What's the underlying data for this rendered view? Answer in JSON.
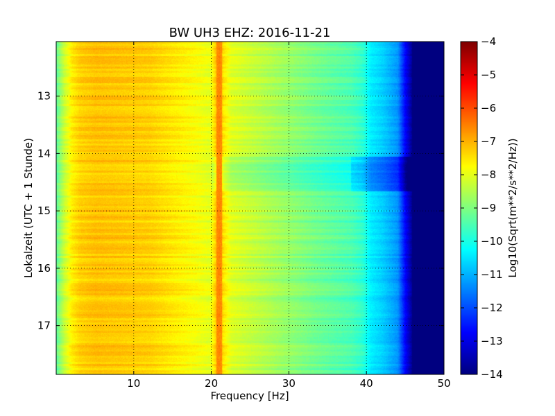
{
  "chart_data": {
    "type": "heatmap",
    "title": "BW UH3 EHZ: 2016-11-21",
    "xlabel": "Frequency [Hz]",
    "ylabel": "Lokalzeit (UTC + 1 Stunde)",
    "xlim": [
      0,
      50
    ],
    "ylim": [
      17.85,
      12.05
    ],
    "y_inverted": true,
    "x_ticks": [
      10,
      20,
      30,
      40,
      50
    ],
    "x_tick_labels": [
      "10",
      "20",
      "30",
      "40",
      "50"
    ],
    "y_ticks": [
      13,
      14,
      15,
      16,
      17
    ],
    "y_tick_labels": [
      "13",
      "14",
      "15",
      "16",
      "17"
    ],
    "grid": true,
    "colormap": "jet",
    "colorbar": {
      "label": "Log10(Sqrt(m**2/s**2/Hz))",
      "range": [
        -14,
        -4
      ],
      "ticks": [
        -4,
        -5,
        -6,
        -7,
        -8,
        -9,
        -10,
        -11,
        -12,
        -13,
        -14
      ],
      "tick_labels": [
        "−4",
        "−5",
        "−6",
        "−7",
        "−8",
        "−9",
        "−10",
        "−11",
        "−12",
        "−13",
        "−14"
      ]
    },
    "spectrum_profile": {
      "frequency_hz": [
        0,
        1,
        2,
        3,
        5,
        8,
        12,
        15,
        18,
        19.8,
        20.5,
        21.0,
        21.5,
        22.5,
        25,
        28,
        30,
        33,
        36,
        38,
        39.5,
        40.5,
        42,
        44,
        45,
        46,
        48,
        50
      ],
      "log10_amplitude": [
        -9.3,
        -8.3,
        -7.6,
        -7.3,
        -7.15,
        -7.2,
        -7.3,
        -7.55,
        -7.8,
        -8.0,
        -7.3,
        -6.6,
        -7.5,
        -8.05,
        -8.3,
        -8.6,
        -8.8,
        -9.1,
        -9.35,
        -9.5,
        -9.8,
        -10.4,
        -10.7,
        -11.3,
        -12.8,
        -14.0,
        -14.0,
        -14.0
      ]
    },
    "annotations": [
      {
        "description": "narrow high-amplitude line",
        "frequency_hz": 21,
        "value": -6.6
      },
      {
        "description": "reduced-amplitude interval",
        "time_range": [
          14.05,
          14.65
        ],
        "value_offset": -0.8
      }
    ]
  }
}
